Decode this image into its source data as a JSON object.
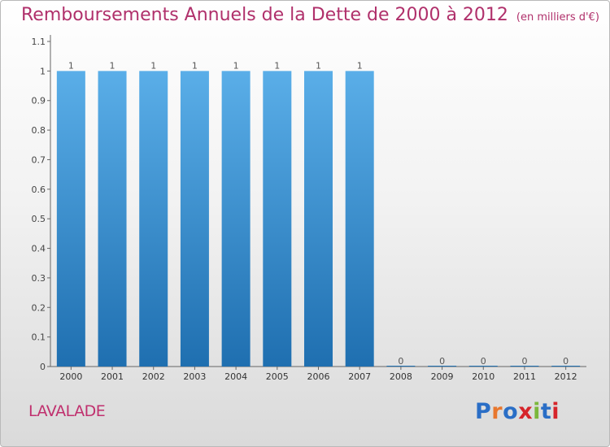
{
  "title": "Remboursements Annuels de la Dette de 2000 à 2012",
  "unit_note": "(en milliers d'€)",
  "commune": "LAVALADE",
  "logo_text": "Proxiti",
  "colors": {
    "title": "#b0306b",
    "bar_light": "#5aaee8",
    "bar_dark": "#1f6fb0",
    "logo": [
      "#2a6ec6",
      "#e8772e",
      "#2a6ec6",
      "#d6242a",
      "#7bb73b",
      "#2a6ec6",
      "#d6242a"
    ]
  },
  "chart_data": {
    "type": "bar",
    "categories": [
      "2000",
      "2001",
      "2002",
      "2003",
      "2004",
      "2005",
      "2006",
      "2007",
      "2008",
      "2009",
      "2010",
      "2011",
      "2012"
    ],
    "values": [
      1,
      1,
      1,
      1,
      1,
      1,
      1,
      1,
      0,
      0,
      0,
      0,
      0
    ],
    "data_labels": [
      "1",
      "1",
      "1",
      "1",
      "1",
      "1",
      "1",
      "1",
      "0",
      "0",
      "0",
      "0",
      "0"
    ],
    "ylim": [
      0,
      1.1
    ],
    "yticks": [
      "0",
      "0.1",
      "0.2",
      "0.3",
      "0.4",
      "0.5",
      "0.6",
      "0.7",
      "0.8",
      "0.9",
      "1",
      "1.1"
    ],
    "grid": false,
    "legend": false
  }
}
